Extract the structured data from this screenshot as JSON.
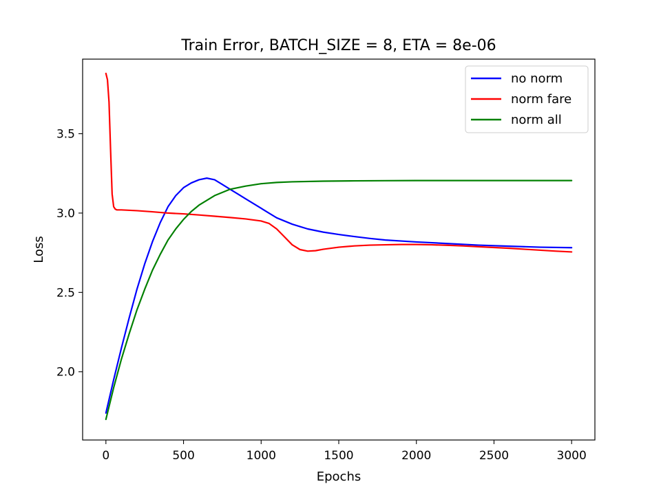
{
  "chart_data": {
    "type": "line",
    "title": "Train Error, BATCH_SIZE = 8, ETA = 8e-06",
    "xlabel": "Epochs",
    "ylabel": "Loss",
    "xlim": [
      -150,
      3150
    ],
    "ylim": [
      1.57,
      3.97
    ],
    "xticks": [
      0,
      500,
      1000,
      1500,
      2000,
      2500,
      3000
    ],
    "yticks": [
      2.0,
      2.5,
      3.0,
      3.5
    ],
    "xtick_labels": [
      "0",
      "500",
      "1000",
      "1500",
      "2000",
      "2500",
      "3000"
    ],
    "ytick_labels": [
      "2.0",
      "2.5",
      "3.0",
      "3.5"
    ],
    "grid": false,
    "legend_position": "top-right",
    "series": [
      {
        "name": "no norm",
        "color": "#0000ff",
        "points": [
          [
            0,
            1.74
          ],
          [
            50,
            1.95
          ],
          [
            100,
            2.15
          ],
          [
            150,
            2.34
          ],
          [
            200,
            2.52
          ],
          [
            250,
            2.68
          ],
          [
            300,
            2.82
          ],
          [
            350,
            2.94
          ],
          [
            400,
            3.04
          ],
          [
            450,
            3.11
          ],
          [
            500,
            3.16
          ],
          [
            550,
            3.19
          ],
          [
            600,
            3.21
          ],
          [
            650,
            3.22
          ],
          [
            700,
            3.21
          ],
          [
            750,
            3.18
          ],
          [
            800,
            3.15
          ],
          [
            850,
            3.12
          ],
          [
            900,
            3.09
          ],
          [
            950,
            3.06
          ],
          [
            1000,
            3.03
          ],
          [
            1050,
            3.0
          ],
          [
            1100,
            2.97
          ],
          [
            1150,
            2.95
          ],
          [
            1200,
            2.93
          ],
          [
            1250,
            2.915
          ],
          [
            1300,
            2.9
          ],
          [
            1400,
            2.88
          ],
          [
            1500,
            2.865
          ],
          [
            1600,
            2.852
          ],
          [
            1700,
            2.84
          ],
          [
            1800,
            2.83
          ],
          [
            2000,
            2.818
          ],
          [
            2200,
            2.808
          ],
          [
            2400,
            2.798
          ],
          [
            2600,
            2.791
          ],
          [
            2800,
            2.785
          ],
          [
            3000,
            2.782
          ]
        ]
      },
      {
        "name": "norm fare",
        "color": "#ff0000",
        "points": [
          [
            0,
            3.88
          ],
          [
            10,
            3.84
          ],
          [
            20,
            3.7
          ],
          [
            30,
            3.4
          ],
          [
            40,
            3.12
          ],
          [
            50,
            3.04
          ],
          [
            60,
            3.025
          ],
          [
            70,
            3.02
          ],
          [
            100,
            3.02
          ],
          [
            200,
            3.015
          ],
          [
            300,
            3.008
          ],
          [
            400,
            3.0
          ],
          [
            500,
            2.995
          ],
          [
            600,
            2.988
          ],
          [
            700,
            2.98
          ],
          [
            800,
            2.972
          ],
          [
            900,
            2.963
          ],
          [
            1000,
            2.95
          ],
          [
            1050,
            2.935
          ],
          [
            1100,
            2.9
          ],
          [
            1150,
            2.85
          ],
          [
            1200,
            2.8
          ],
          [
            1250,
            2.77
          ],
          [
            1300,
            2.76
          ],
          [
            1350,
            2.763
          ],
          [
            1400,
            2.772
          ],
          [
            1500,
            2.785
          ],
          [
            1600,
            2.793
          ],
          [
            1700,
            2.798
          ],
          [
            1800,
            2.8
          ],
          [
            1900,
            2.802
          ],
          [
            2000,
            2.802
          ],
          [
            2100,
            2.8
          ],
          [
            2200,
            2.797
          ],
          [
            2300,
            2.793
          ],
          [
            2400,
            2.788
          ],
          [
            2500,
            2.783
          ],
          [
            2600,
            2.778
          ],
          [
            2700,
            2.772
          ],
          [
            2800,
            2.766
          ],
          [
            2900,
            2.76
          ],
          [
            3000,
            2.755
          ]
        ]
      },
      {
        "name": "norm all",
        "color": "#008000",
        "points": [
          [
            0,
            1.7
          ],
          [
            50,
            1.9
          ],
          [
            100,
            2.08
          ],
          [
            150,
            2.24
          ],
          [
            200,
            2.39
          ],
          [
            250,
            2.52
          ],
          [
            300,
            2.64
          ],
          [
            350,
            2.74
          ],
          [
            400,
            2.83
          ],
          [
            450,
            2.9
          ],
          [
            500,
            2.96
          ],
          [
            550,
            3.01
          ],
          [
            600,
            3.05
          ],
          [
            650,
            3.08
          ],
          [
            700,
            3.11
          ],
          [
            750,
            3.13
          ],
          [
            800,
            3.15
          ],
          [
            900,
            3.17
          ],
          [
            1000,
            3.185
          ],
          [
            1100,
            3.193
          ],
          [
            1200,
            3.197
          ],
          [
            1400,
            3.201
          ],
          [
            1600,
            3.203
          ],
          [
            1800,
            3.204
          ],
          [
            2000,
            3.205
          ],
          [
            2500,
            3.205
          ],
          [
            3000,
            3.205
          ]
        ]
      }
    ]
  }
}
